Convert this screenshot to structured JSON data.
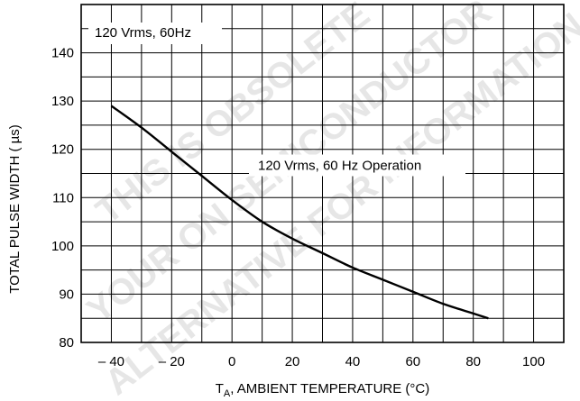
{
  "chart_data": {
    "type": "line",
    "title": "",
    "xlabel_prefix": "T",
    "xlabel_sub": "A",
    "xlabel_rest": ", AMBIENT TEMPERATURE (°C)",
    "ylabel": "TOTAL PULSE WIDTH ( µs)",
    "xlim": [
      -50,
      110
    ],
    "ylim": [
      80,
      150
    ],
    "grid": true,
    "x_ticks": [
      -40,
      -20,
      0,
      20,
      40,
      60,
      80,
      100
    ],
    "x_tick_labels": [
      "– 40",
      "– 20",
      "0",
      "20",
      "40",
      "60",
      "80",
      "100"
    ],
    "y_ticks": [
      80,
      90,
      100,
      110,
      120,
      130,
      140
    ],
    "y_tick_labels": [
      "80",
      "90",
      "100",
      "110",
      "120",
      "130",
      "140"
    ],
    "legend_box": "120 Vrms, 60Hz",
    "annotation": "120 Vrms, 60 Hz Operation",
    "series": [
      {
        "x": [
          -40,
          -30,
          -20,
          -10,
          0,
          10,
          20,
          30,
          40,
          50,
          60,
          70,
          80,
          85
        ],
        "y": [
          129,
          124.5,
          119.5,
          114.5,
          109.5,
          105,
          101.5,
          98.5,
          95.5,
          93,
          90.5,
          88,
          86,
          85
        ]
      }
    ],
    "line_color": "#000000"
  },
  "watermark": {
    "lines": [
      "THIS IS OBSOLETE",
      "YOUR ON SEMICONDUCTOR",
      "ALTERNATIVE FOR INFORMATION"
    ]
  }
}
